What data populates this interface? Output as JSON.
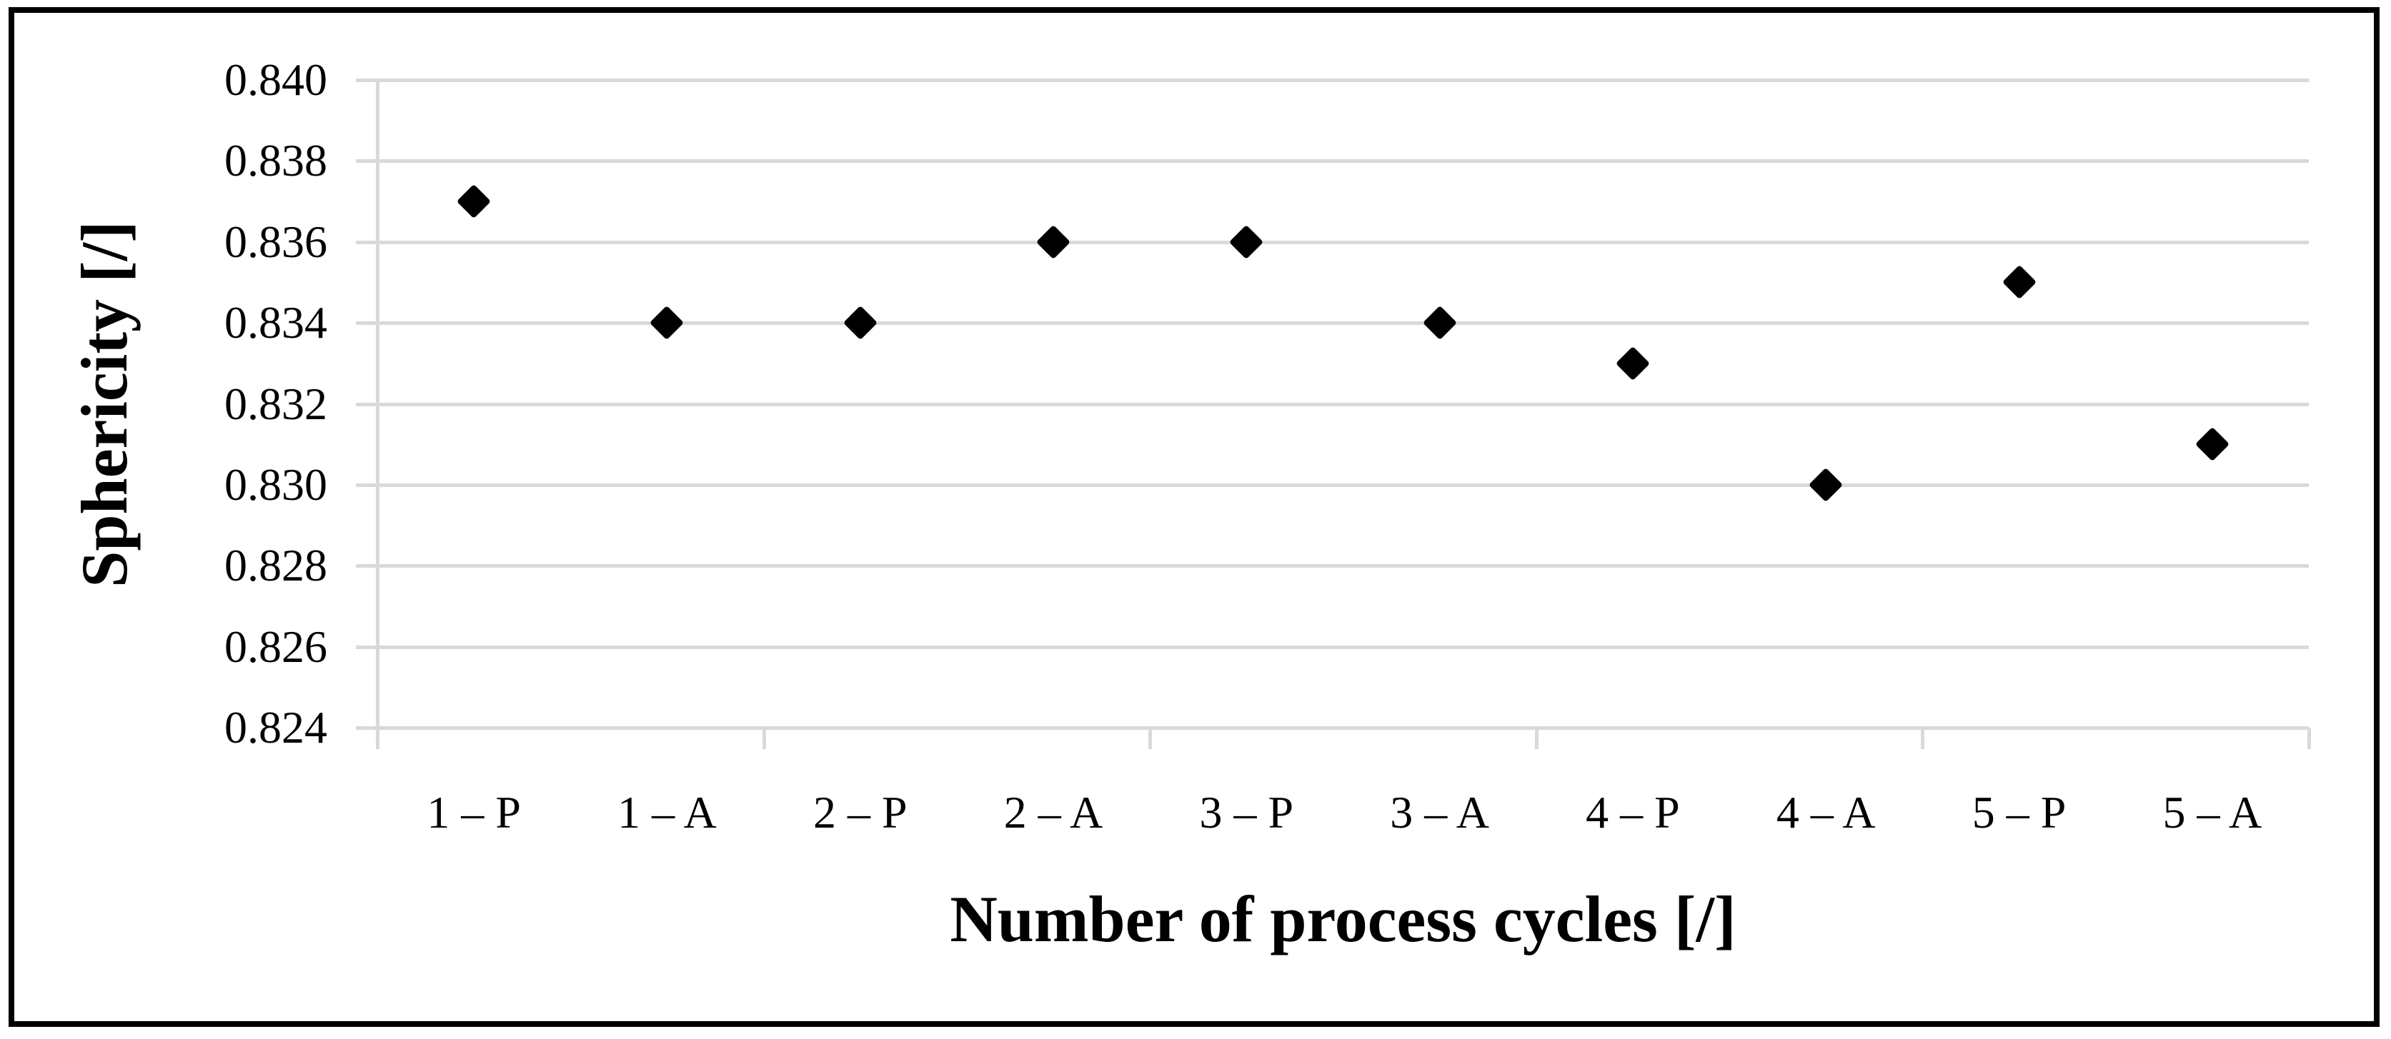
{
  "figure": {
    "background_color": "#FFFFFF",
    "border_color": "#000000"
  },
  "chart_data": {
    "type": "scatter",
    "title": "",
    "categories": [
      "1 – P",
      "1 – A",
      "2 – P",
      "2 – A",
      "3 – P",
      "3 – A",
      "4 – P",
      "4 – A",
      "5 – P",
      "5 – A"
    ],
    "series": [
      {
        "name": "Sphericity",
        "values": [
          0.837,
          0.834,
          0.834,
          0.836,
          0.836,
          0.834,
          0.833,
          0.83,
          0.835,
          0.831
        ]
      }
    ],
    "xlabel": "Number of process cycles [/]",
    "ylabel": "Sphericity [/]",
    "ylim": [
      0.824,
      0.84
    ],
    "y_tick_step": 0.002,
    "y_tick_decimals": 3,
    "y_tick_labels": [
      "0.840",
      "0.838",
      "0.836",
      "0.834",
      "0.832",
      "0.830",
      "0.828",
      "0.826",
      "0.824"
    ],
    "grid": "horizontal",
    "legend": "none",
    "marker": "diamond",
    "marker_color": "#000000",
    "gridline_color": "#D9D9D9",
    "x_group_tick_every": 2
  }
}
